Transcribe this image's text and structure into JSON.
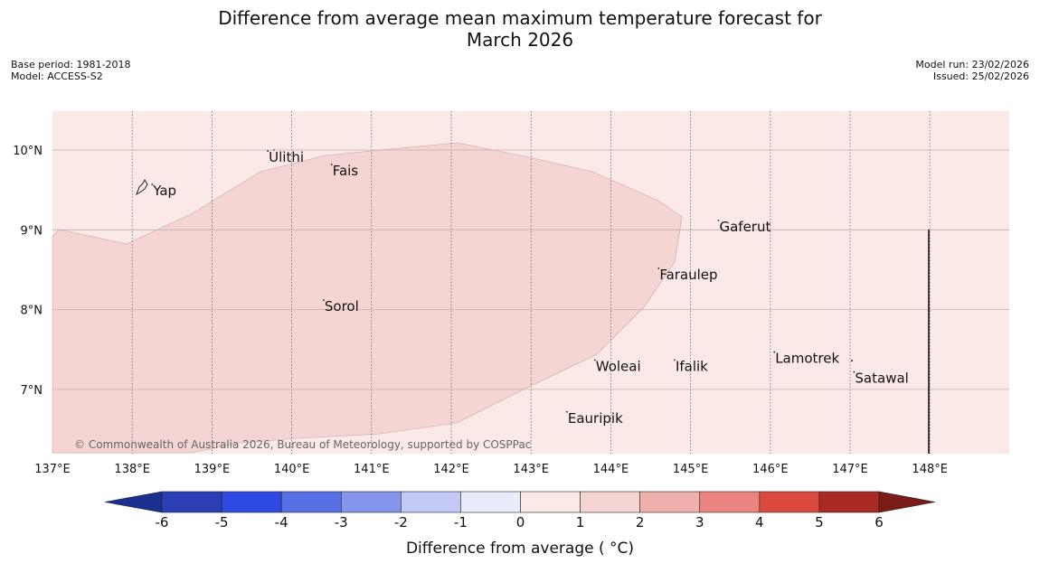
{
  "header": {
    "title_line1": "Difference from average mean maximum temperature forecast for",
    "title_line2": "March 2026",
    "base_period": "Base period: 1981-2018",
    "model": "Model: ACCESS-S2",
    "model_run": "Model run: 23/02/2026",
    "issued": "Issued: 25/02/2026"
  },
  "map": {
    "lon_labels": [
      "137°E",
      "138°E",
      "139°E",
      "140°E",
      "141°E",
      "142°E",
      "143°E",
      "144°E",
      "145°E",
      "146°E",
      "147°E",
      "148°E"
    ],
    "lat_labels": [
      "10°N",
      "9°N",
      "8°N",
      "7°N"
    ],
    "places": [
      {
        "name": "Yap",
        "lon": 138.25,
        "lat": 9.5
      },
      {
        "name": "Ulithi",
        "lon": 139.7,
        "lat": 9.92
      },
      {
        "name": "Fais",
        "lon": 140.5,
        "lat": 9.75
      },
      {
        "name": "Gaferut",
        "lon": 145.35,
        "lat": 9.05
      },
      {
        "name": "Faraulep",
        "lon": 144.6,
        "lat": 8.45
      },
      {
        "name": "Sorol",
        "lon": 140.4,
        "lat": 8.05
      },
      {
        "name": "Lamotrek",
        "lon": 146.05,
        "lat": 7.4
      },
      {
        "name": "Woleai",
        "lon": 143.8,
        "lat": 7.3
      },
      {
        "name": "Ifalik",
        "lon": 144.8,
        "lat": 7.3
      },
      {
        "name": "Satawal",
        "lon": 147.05,
        "lat": 7.15
      },
      {
        "name": "Eauripik",
        "lon": 143.45,
        "lat": 6.65
      }
    ],
    "copyright": "© Commonwealth of Australia 2026, Bureau of Meteorology, supported by COSPPac",
    "background_color": "#fbe9e7",
    "anomaly_fill_color": "#f5d5d3"
  },
  "colorbar": {
    "title": "Difference from average ( °C)",
    "ticks": [
      "-6",
      "-5",
      "-4",
      "-3",
      "-2",
      "-1",
      "0",
      "1",
      "2",
      "3",
      "4",
      "5",
      "6"
    ],
    "colors": [
      "#1b2f8f",
      "#2a3fb5",
      "#2f4ae0",
      "#5870e6",
      "#8695ec",
      "#c3c9f5",
      "#eaecfb",
      "#fbe9e7",
      "#f5d5d3",
      "#efb0ab",
      "#ea857f",
      "#dc4a3f",
      "#a92a24",
      "#7a1b16"
    ]
  }
}
